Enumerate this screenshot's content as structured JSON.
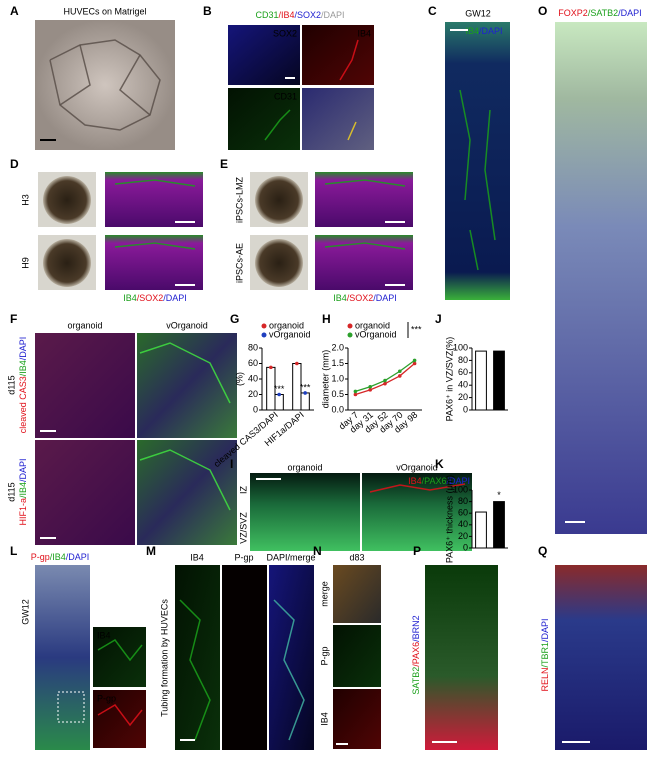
{
  "panels": {
    "A": {
      "label": "A",
      "title": "HUVECs on Matrigel"
    },
    "B": {
      "label": "B",
      "stain": [
        "CD31",
        "/IB4",
        "/SOX2",
        "/DAPI"
      ],
      "tiles": [
        "SOX2",
        "IB4",
        "CD31"
      ]
    },
    "C": {
      "label": "C",
      "title": "GW12",
      "stain": [
        "IB4",
        "/DAPI"
      ]
    },
    "D": {
      "label": "D",
      "rows": [
        "H3",
        "H9"
      ],
      "stain": [
        "IB4",
        "/SOX2",
        "/DAPI"
      ]
    },
    "E": {
      "label": "E",
      "rows": [
        "iPSCs-LMZ",
        "iPSCs-AE"
      ],
      "stain": [
        "IB4",
        "/SOX2",
        "/DAPI"
      ]
    },
    "F": {
      "label": "F",
      "columns": [
        "organoid",
        "vOrganoid"
      ],
      "rows": [
        {
          "day": "d115",
          "stain": [
            "cleaved CAS3",
            "/IB4",
            "/DAPI"
          ]
        },
        {
          "day": "d115",
          "stain": [
            "HIF1-a",
            "/IB4",
            "/DAPI"
          ]
        }
      ]
    },
    "I": {
      "label": "I",
      "columns": [
        "organoid",
        "vOrganoid"
      ],
      "stain": [
        "IB4",
        "/PAX6",
        "/DAPI"
      ],
      "zones": [
        "IZ",
        "VZ/SVZ"
      ]
    },
    "L": {
      "label": "L",
      "stain": [
        "P-gp",
        "/IB4",
        "/DAPI"
      ],
      "side": "GW12",
      "insets": [
        "IB4",
        "P-gp"
      ]
    },
    "M": {
      "label": "M",
      "columns": [
        "IB4",
        "P-gp",
        "DAPI/merge"
      ],
      "side": "Tubing formation by HUVECs"
    },
    "N": {
      "label": "N",
      "title": "d83",
      "rows": [
        "merge",
        "P-gp",
        "IB4"
      ]
    },
    "O": {
      "label": "O",
      "stain": [
        "FOXP2",
        "/SATB2",
        "/DAPI"
      ]
    },
    "P": {
      "label": "P",
      "stain": [
        "SATB2",
        "/PAX6",
        "/BRN2"
      ]
    },
    "Q": {
      "label": "Q",
      "stain": [
        "RELN",
        "/TBR1",
        "/DAPI"
      ]
    }
  },
  "chart_data": [
    {
      "type": "bar",
      "label": "G",
      "ylabel": "(%)",
      "categories": [
        "cleaved CAS3/DAPI",
        "HIF1a/DAPI"
      ],
      "series": [
        {
          "name": "organoid",
          "color": "#d62728",
          "values": [
            55,
            60
          ]
        },
        {
          "name": "vOrganoid",
          "color": "#1f3fbf",
          "values": [
            20,
            22
          ]
        }
      ],
      "annotations": [
        "***",
        "***"
      ],
      "ylim": [
        0,
        80
      ],
      "yticks": [
        0,
        20,
        40,
        60,
        80
      ]
    },
    {
      "type": "line",
      "label": "H",
      "ylabel": "diameter (mm)",
      "annotation": "***",
      "categories": [
        "day 7",
        "day 31",
        "day 52",
        "day 70",
        "day 98"
      ],
      "series": [
        {
          "name": "organoid",
          "color": "#d62728",
          "values": [
            0.5,
            0.65,
            0.85,
            1.1,
            1.5
          ]
        },
        {
          "name": "vOrganoid",
          "color": "#2ca02c",
          "values": [
            0.6,
            0.75,
            0.95,
            1.25,
            1.6
          ]
        }
      ],
      "ylim": [
        0,
        2
      ],
      "yticks": [
        {
          "value": 0,
          "label": "0.0"
        },
        0.5,
        {
          "value": 1,
          "label": "1.0"
        },
        1.5,
        {
          "value": 2,
          "label": "2.0"
        }
      ]
    },
    {
      "type": "bar",
      "label": "J",
      "ylabel": "PAX6⁺ in VZ/SVZ(%)",
      "values": [
        95,
        95
      ],
      "colors": [
        "#ffffff",
        "#000000"
      ],
      "ylim": [
        0,
        100
      ],
      "yticks": [
        0,
        20,
        40,
        60,
        80,
        100
      ]
    },
    {
      "type": "bar",
      "label": "K",
      "ylabel": "PAX6⁺ thickness (μm)",
      "values": [
        62,
        80
      ],
      "colors": [
        "#ffffff",
        "#000000"
      ],
      "annotation": "*",
      "ylim": [
        0,
        100
      ],
      "yticks": [
        0,
        20,
        40,
        60,
        80,
        100
      ]
    }
  ]
}
